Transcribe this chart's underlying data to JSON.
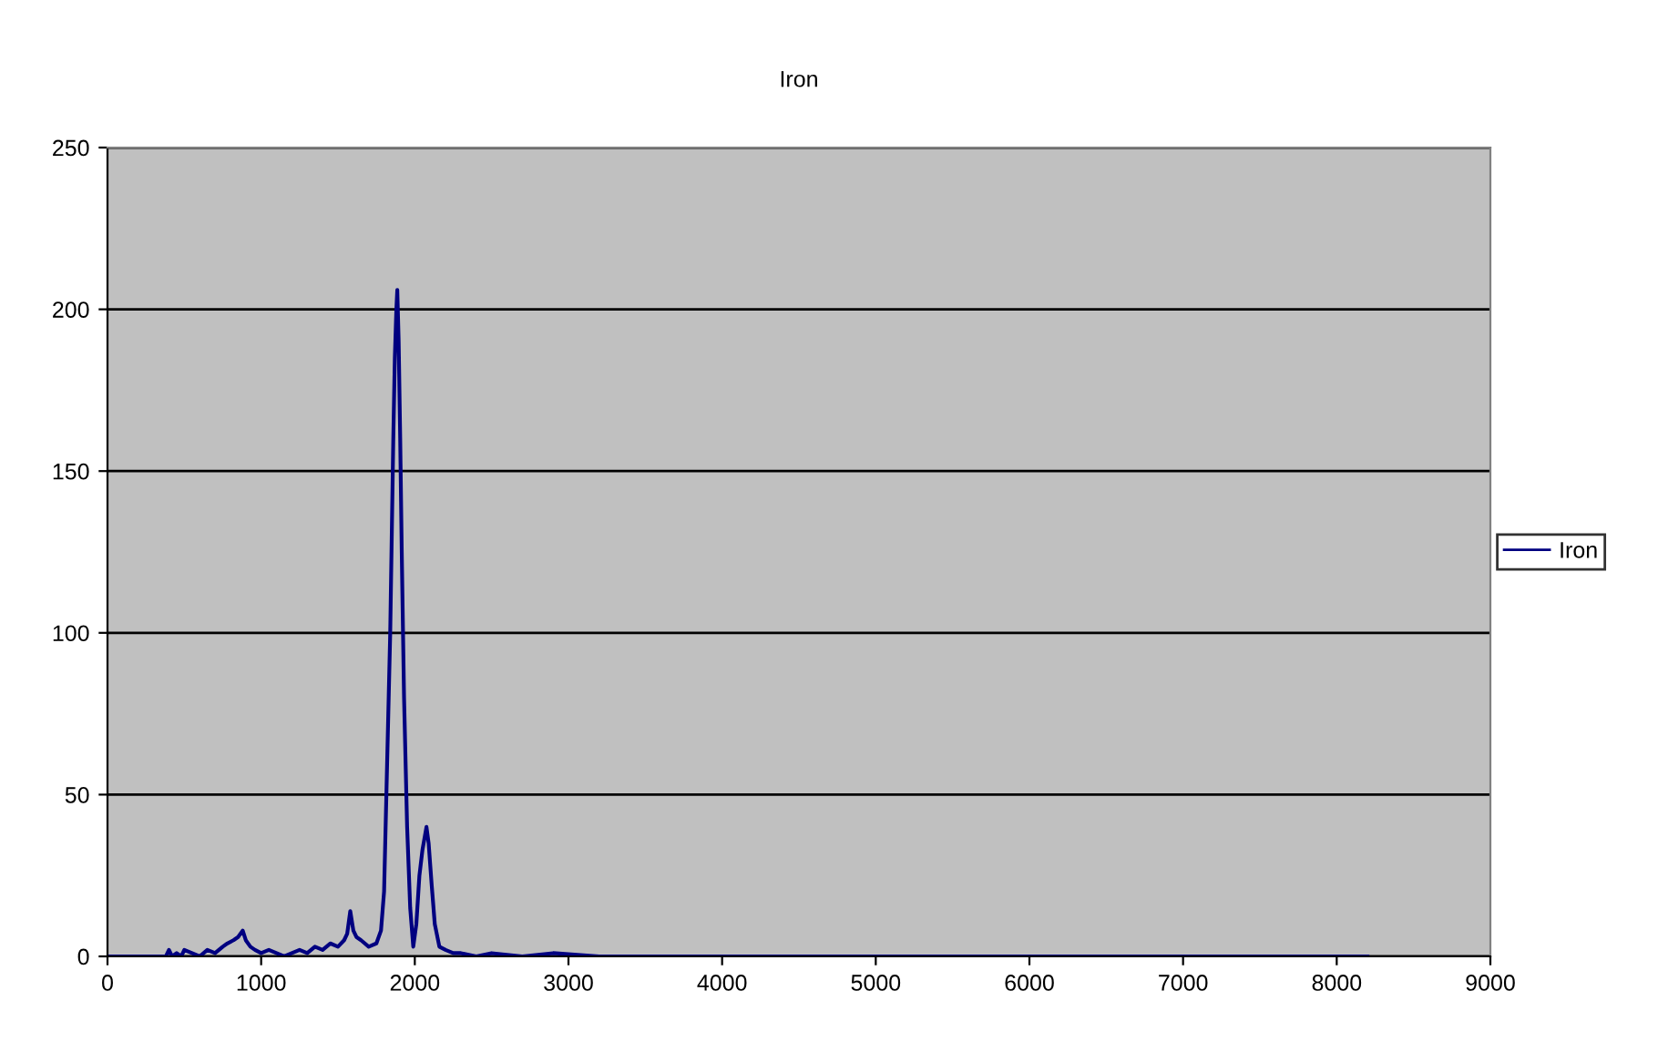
{
  "chart_data": {
    "type": "line",
    "title": "Iron",
    "xlim": [
      0,
      9000
    ],
    "xticks": [
      0,
      1000,
      2000,
      3000,
      4000,
      5000,
      6000,
      7000,
      8000,
      9000
    ],
    "ylim": [
      0,
      250
    ],
    "yticks": [
      0,
      50,
      100,
      150,
      200,
      250
    ],
    "grid": "y",
    "legend": "right",
    "marker": "none",
    "line_style": "solid",
    "series": [
      {
        "name": "Iron",
        "color": "#000080",
        "x": [
          0,
          380,
          400,
          420,
          450,
          480,
          500,
          550,
          600,
          650,
          700,
          750,
          780,
          820,
          850,
          880,
          900,
          930,
          960,
          1000,
          1050,
          1100,
          1150,
          1200,
          1250,
          1300,
          1350,
          1400,
          1450,
          1500,
          1540,
          1560,
          1580,
          1600,
          1620,
          1650,
          1700,
          1750,
          1780,
          1800,
          1820,
          1840,
          1860,
          1870,
          1880,
          1886,
          1895,
          1905,
          1915,
          1930,
          1950,
          1970,
          1990,
          2010,
          2030,
          2050,
          2076,
          2090,
          2110,
          2130,
          2160,
          2200,
          2250,
          2300,
          2400,
          2500,
          2700,
          2900,
          3200,
          3500,
          4000,
          4500,
          5000,
          5500,
          6000,
          6500,
          7000,
          7500,
          8000,
          8200
        ],
        "values": [
          0,
          0,
          2,
          0,
          1,
          0,
          2,
          1,
          0,
          2,
          1,
          3,
          4,
          5,
          6,
          8,
          5,
          3,
          2,
          1,
          2,
          1,
          0,
          1,
          2,
          1,
          3,
          2,
          4,
          3,
          5,
          7,
          14,
          8,
          6,
          5,
          3,
          4,
          8,
          20,
          60,
          100,
          160,
          185,
          200,
          206,
          190,
          160,
          125,
          80,
          40,
          15,
          3,
          10,
          25,
          33,
          40,
          35,
          22,
          10,
          3,
          2,
          1,
          1,
          0,
          1,
          0,
          1,
          0,
          0,
          0,
          0,
          0,
          0,
          0,
          0,
          0,
          0,
          0,
          0
        ]
      }
    ]
  }
}
